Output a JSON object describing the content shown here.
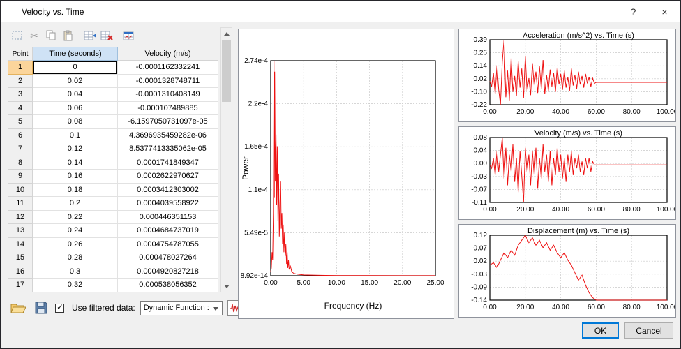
{
  "titlebar": {
    "title": "Velocity vs. Time",
    "help_label": "?",
    "close_label": "×"
  },
  "toolbar": {
    "icons": [
      "select-icon",
      "cut-icon",
      "copy-icon",
      "paste-icon",
      "insert-row-icon",
      "delete-row-icon",
      "plot-table-icon"
    ]
  },
  "table": {
    "columns": [
      "Point",
      "Time (seconds)",
      "Velocity (m/s)"
    ],
    "rows": [
      [
        "1",
        "0",
        "-0.0001162332241"
      ],
      [
        "2",
        "0.02",
        "-0.0001328748711"
      ],
      [
        "3",
        "0.04",
        "-0.0001310408149"
      ],
      [
        "4",
        "0.06",
        "-0.000107489885"
      ],
      [
        "5",
        "0.08",
        "-6.1597050731097e-05"
      ],
      [
        "6",
        "0.1",
        "4.3696935459282e-06"
      ],
      [
        "7",
        "0.12",
        "8.5377413335062e-05"
      ],
      [
        "8",
        "0.14",
        "0.0001741849347"
      ],
      [
        "9",
        "0.16",
        "0.0002622970627"
      ],
      [
        "10",
        "0.18",
        "0.0003412303002"
      ],
      [
        "11",
        "0.2",
        "0.0004039558922"
      ],
      [
        "12",
        "0.22",
        "0.000446351153"
      ],
      [
        "13",
        "0.24",
        "0.0004684737019"
      ],
      [
        "14",
        "0.26",
        "0.0004754787055"
      ],
      [
        "15",
        "0.28",
        "0.000478027264"
      ],
      [
        "16",
        "0.3",
        "0.0004920827218"
      ],
      [
        "17",
        "0.32",
        "0.000538056352"
      ]
    ],
    "selected": {
      "row": "1",
      "column": "Time (seconds)"
    }
  },
  "footer": {
    "open_icon": "folder-open-icon",
    "save_icon": "save-icon",
    "use_filtered_label": "Use filtered data:",
    "use_filtered_checked": true,
    "function_dropdown_value": "Dynamic Function :",
    "waveform_icon": "waveform-icon",
    "ok_label": "OK",
    "cancel_label": "Cancel"
  },
  "colors": {
    "accent": "#0078d7",
    "series": "#ee1111",
    "selected_row_header": "#fbd59b",
    "selected_column_header": "#cfe2f5"
  },
  "chart_data": [
    {
      "id": "power-spectrum",
      "type": "line",
      "title": "",
      "xlabel": "Frequency (Hz)",
      "ylabel": "Power",
      "xlim": [
        0,
        25
      ],
      "ylim": [
        0,
        0.000274
      ],
      "xticks": [
        "0.00",
        "5.00",
        "10.00",
        "15.00",
        "20.00",
        "25.00"
      ],
      "yticks": [
        "2.74e-4",
        "2.2e-4",
        "1.65e-4",
        "1.1e-4",
        "5.49e-5",
        "8.92e-14"
      ],
      "color": "#ee1111",
      "grid": true,
      "legend": "none",
      "x": [
        0,
        0.1,
        0.2,
        0.3,
        0.4,
        0.5,
        0.55,
        0.6,
        0.7,
        0.8,
        0.9,
        1.0,
        1.1,
        1.2,
        1.3,
        1.4,
        1.5,
        1.6,
        1.7,
        1.8,
        1.9,
        2.0,
        2.1,
        2.2,
        2.3,
        2.4,
        2.5,
        2.6,
        2.7,
        2.8,
        3.0,
        3.2,
        3.5,
        4.0,
        5.0,
        7.5,
        10,
        15,
        20,
        25
      ],
      "y": [
        5e-06,
        1e-05,
        3e-05,
        2e-05,
        8e-05,
        0.000274,
        0.0001,
        0.00026,
        0.00012,
        0.00018,
        9e-05,
        0.000165,
        7e-05,
        0.00013,
        5e-05,
        9e-05,
        0.00012,
        6e-05,
        8e-05,
        4e-05,
        6.5e-05,
        3e-05,
        5.5e-05,
        2.5e-05,
        4e-05,
        1.5e-05,
        3e-05,
        1e-05,
        2e-05,
        8e-06,
        1.2e-05,
        5e-06,
        3e-06,
        2e-06,
        1e-06,
        5e-07,
        3e-07,
        2e-07,
        1e-07,
        1e-07
      ]
    },
    {
      "id": "acceleration",
      "type": "line",
      "title": "Acceleration (m/s^2) vs. Time (s)",
      "xlabel": "",
      "ylabel": "",
      "xlim": [
        0,
        100
      ],
      "ylim": [
        -0.22,
        0.39
      ],
      "xticks": [
        "0.00",
        "20.00",
        "40.00",
        "60.00",
        "80.00",
        "100.00"
      ],
      "yticks": [
        "0.39",
        "0.26",
        "0.14",
        "0.02",
        "-0.10",
        "-0.22"
      ],
      "color": "#ee1111",
      "grid": true,
      "legend": "none",
      "x": [
        0,
        1,
        2,
        3,
        4,
        5,
        6,
        7,
        8,
        9,
        10,
        11,
        12,
        13,
        14,
        15,
        16,
        17,
        18,
        19,
        20,
        21,
        22,
        23,
        24,
        25,
        26,
        27,
        28,
        29,
        30,
        31,
        32,
        33,
        34,
        35,
        36,
        37,
        38,
        39,
        40,
        41,
        42,
        43,
        44,
        45,
        46,
        47,
        48,
        49,
        50,
        51,
        52,
        53,
        54,
        55,
        56,
        57,
        58,
        59,
        60,
        65,
        70,
        75,
        80,
        85,
        90,
        95,
        100
      ],
      "y": [
        0,
        -0.05,
        0.08,
        -0.12,
        0.15,
        -0.08,
        -0.22,
        0.18,
        0.39,
        -0.15,
        0.1,
        -0.18,
        0.22,
        -0.1,
        0.05,
        -0.14,
        0.19,
        -0.06,
        0.12,
        -0.16,
        0.24,
        -0.09,
        0.03,
        -0.13,
        0.17,
        -0.04,
        0.09,
        -0.11,
        0.14,
        -0.07,
        0.2,
        -0.12,
        0.06,
        -0.09,
        0.11,
        -0.05,
        0.08,
        -0.1,
        0.13,
        -0.03,
        0.07,
        -0.08,
        0.1,
        -0.06,
        0.04,
        -0.09,
        0.12,
        -0.04,
        0.06,
        -0.07,
        0.09,
        -0.03,
        0.05,
        -0.06,
        0.07,
        -0.02,
        0.04,
        -0.05,
        0.03,
        -0.02,
        -0.01,
        -0.01,
        -0.01,
        -0.01,
        -0.01,
        -0.01,
        -0.01,
        -0.01,
        -0.01
      ]
    },
    {
      "id": "velocity",
      "type": "line",
      "title": "Velocity (m/s) vs. Time (s)",
      "xlabel": "",
      "ylabel": "",
      "xlim": [
        0,
        100
      ],
      "ylim": [
        -0.11,
        0.08
      ],
      "xticks": [
        "0.00",
        "20.00",
        "40.00",
        "60.00",
        "80.00",
        "100.00"
      ],
      "yticks": [
        "0.08",
        "0.04",
        "0.00",
        "-0.03",
        "-0.07",
        "-0.11"
      ],
      "color": "#ee1111",
      "grid": true,
      "legend": "none",
      "x": [
        0,
        1,
        2,
        3,
        4,
        5,
        6,
        7,
        8,
        9,
        10,
        11,
        12,
        13,
        14,
        15,
        16,
        17,
        18,
        19,
        20,
        21,
        22,
        23,
        24,
        25,
        26,
        27,
        28,
        29,
        30,
        31,
        32,
        33,
        34,
        35,
        36,
        37,
        38,
        39,
        40,
        41,
        42,
        43,
        44,
        45,
        46,
        47,
        48,
        49,
        50,
        51,
        52,
        53,
        54,
        55,
        56,
        57,
        58,
        59,
        60,
        65,
        70,
        75,
        80,
        85,
        90,
        95,
        100
      ],
      "y": [
        0,
        -0.01,
        0.02,
        -0.03,
        0.04,
        -0.02,
        0.03,
        0.08,
        -0.04,
        0.05,
        -0.06,
        0.03,
        -0.02,
        0.06,
        -0.05,
        0.02,
        -0.08,
        0.04,
        -0.03,
        -0.11,
        0.05,
        -0.02,
        0.03,
        -0.06,
        0.04,
        -0.03,
        0.05,
        -0.07,
        0.02,
        -0.04,
        0.06,
        -0.02,
        0.03,
        -0.05,
        0.04,
        -0.06,
        0.02,
        -0.03,
        0.05,
        -0.02,
        0.03,
        -0.04,
        0.02,
        -0.05,
        0.03,
        -0.02,
        0.04,
        -0.03,
        0.02,
        -0.01,
        0.03,
        -0.02,
        0.01,
        -0.03,
        0.02,
        -0.01,
        0.02,
        -0.02,
        0.01,
        0,
        0,
        0,
        0,
        0,
        0,
        0,
        0,
        0,
        0
      ]
    },
    {
      "id": "displacement",
      "type": "line",
      "title": "Displacement (m) vs. Time (s)",
      "xlabel": "",
      "ylabel": "",
      "xlim": [
        0,
        100
      ],
      "ylim": [
        -0.14,
        0.12
      ],
      "xticks": [
        "0.00",
        "20.00",
        "40.00",
        "60.00",
        "80.00",
        "100.00"
      ],
      "yticks": [
        "0.12",
        "0.07",
        "0.02",
        "-0.03",
        "-0.09",
        "-0.14"
      ],
      "color": "#ee1111",
      "grid": true,
      "legend": "none",
      "x": [
        0,
        2,
        4,
        6,
        8,
        10,
        12,
        14,
        16,
        18,
        20,
        22,
        24,
        26,
        28,
        30,
        32,
        34,
        36,
        38,
        40,
        42,
        44,
        46,
        48,
        50,
        52,
        54,
        56,
        58,
        60,
        65,
        70,
        75,
        80,
        85,
        90,
        95,
        100
      ],
      "y": [
        0,
        0.01,
        -0.01,
        0.02,
        0.05,
        0.03,
        0.06,
        0.04,
        0.08,
        0.1,
        0.12,
        0.09,
        0.11,
        0.08,
        0.1,
        0.07,
        0.09,
        0.06,
        0.08,
        0.05,
        0.03,
        0.05,
        0.02,
        0,
        -0.03,
        -0.06,
        -0.04,
        -0.08,
        -0.11,
        -0.13,
        -0.14,
        -0.14,
        -0.14,
        -0.14,
        -0.14,
        -0.14,
        -0.14,
        -0.14,
        -0.14
      ]
    }
  ]
}
